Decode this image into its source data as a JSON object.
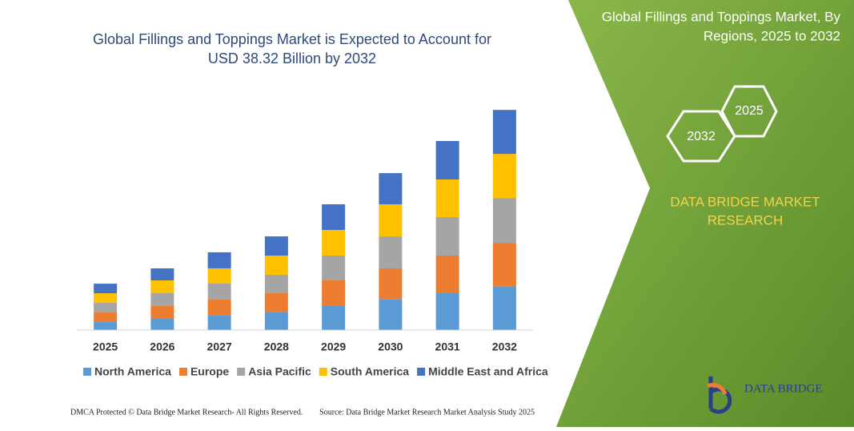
{
  "chart_data": {
    "type": "stacked-bar",
    "title": "Global Fillings and Toppings Market is Expected to Account for USD 38.32 Billion by 2032",
    "categories": [
      "2025",
      "2026",
      "2027",
      "2028",
      "2029",
      "2030",
      "2031",
      "2032"
    ],
    "series": [
      {
        "name": "North America",
        "color": "#5b9bd5",
        "values": [
          1.39,
          1.95,
          2.51,
          3.07,
          4.18,
          5.3,
          6.41,
          7.52
        ]
      },
      {
        "name": "Europe",
        "color": "#ed7d31",
        "values": [
          1.67,
          2.23,
          2.79,
          3.34,
          4.46,
          5.43,
          6.55,
          7.66
        ]
      },
      {
        "name": "Asia Pacific",
        "color": "#a5a5a5",
        "values": [
          1.67,
          2.23,
          2.79,
          3.21,
          4.32,
          5.57,
          6.69,
          7.8
        ]
      },
      {
        "name": "South America",
        "color": "#ffc000",
        "values": [
          1.67,
          2.23,
          2.65,
          3.34,
          4.46,
          5.57,
          6.55,
          7.66
        ]
      },
      {
        "name": "Middle East and Africa",
        "color": "#4472c4",
        "values": [
          1.67,
          2.09,
          2.79,
          3.34,
          4.46,
          5.43,
          6.69,
          7.66
        ]
      }
    ],
    "ylim": [
      0,
      40
    ],
    "grid": false,
    "legend": "bottom"
  },
  "panel": {
    "title": "Global Fillings and Toppings Market, By Regions, 2025 to 2032",
    "hex_start": "2025",
    "hex_end": "2032",
    "brand": "DATA BRIDGE MARKET RESEARCH",
    "logo": "DATA BRIDGE"
  },
  "footer": {
    "left": "DMCA Protected © Data Bridge Market Research- All Rights Reserved.",
    "right": "Source: Data Bridge Market Research Market Analysis Study 2025"
  }
}
